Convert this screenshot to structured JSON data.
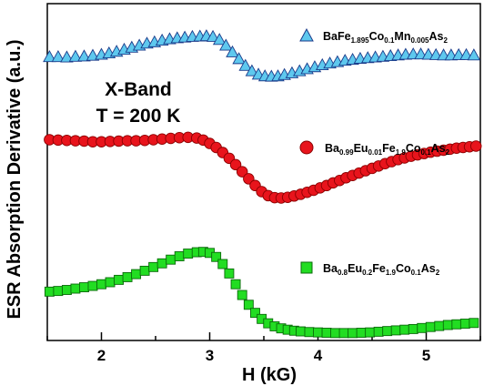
{
  "chart_data": {
    "type": "scatter",
    "xlabel": "H (kG)",
    "ylabel": "ESR Absorption Derivative (a.u.)",
    "xlim": [
      1.5,
      5.5
    ],
    "ylim": [
      0,
      1
    ],
    "x_ticks": [
      2,
      3,
      4,
      5
    ],
    "x_tick_labels": [
      "2",
      "3",
      "4",
      "5"
    ],
    "y_ticks_labeled": false,
    "grid": false,
    "legend_placement": "right, beside each series",
    "annotations": [
      "X-Band",
      "T = 200 K"
    ],
    "series": [
      {
        "legend": [
          {
            "t": "BaFe",
            "s": false
          },
          {
            "t": "1.895",
            "s": true
          },
          {
            "t": "Co",
            "s": false
          },
          {
            "t": "0.1",
            "s": true
          },
          {
            "t": "Mn",
            "s": false
          },
          {
            "t": "0.005",
            "s": true
          },
          {
            "t": "As",
            "s": false
          },
          {
            "t": "2",
            "s": true
          }
        ],
        "marker": "triangle-up",
        "color": "#5ec8ee",
        "edge_color": "#1a3a8a",
        "x": [
          1.52,
          1.6,
          1.68,
          1.76,
          1.84,
          1.92,
          2.0,
          2.07,
          2.14,
          2.21,
          2.28,
          2.35,
          2.42,
          2.49,
          2.56,
          2.63,
          2.7,
          2.77,
          2.84,
          2.91,
          2.97,
          3.03,
          3.09,
          3.15,
          3.21,
          3.27,
          3.33,
          3.39,
          3.45,
          3.51,
          3.57,
          3.63,
          3.69,
          3.76,
          3.83,
          3.9,
          3.97,
          4.04,
          4.11,
          4.18,
          4.25,
          4.32,
          4.39,
          4.46,
          4.53,
          4.6,
          4.67,
          4.74,
          4.81,
          4.88,
          4.95,
          5.02,
          5.09,
          5.16,
          5.23,
          5.3,
          5.37,
          5.44
        ],
        "y": [
          0.842,
          0.842,
          0.841,
          0.843,
          0.844,
          0.846,
          0.849,
          0.853,
          0.858,
          0.864,
          0.87,
          0.876,
          0.882,
          0.886,
          0.891,
          0.895,
          0.898,
          0.9,
          0.902,
          0.903,
          0.904,
          0.902,
          0.893,
          0.876,
          0.856,
          0.836,
          0.816,
          0.8,
          0.79,
          0.785,
          0.784,
          0.785,
          0.789,
          0.794,
          0.8,
          0.806,
          0.812,
          0.818,
          0.823,
          0.827,
          0.831,
          0.834,
          0.837,
          0.839,
          0.841,
          0.843,
          0.845,
          0.847,
          0.849,
          0.85,
          0.85,
          0.849,
          0.848,
          0.847,
          0.847,
          0.848,
          0.848,
          0.847
        ]
      },
      {
        "legend": [
          {
            "t": "Ba",
            "s": false
          },
          {
            "t": "0.99",
            "s": true
          },
          {
            "t": "Eu",
            "s": false
          },
          {
            "t": "0.01",
            "s": true
          },
          {
            "t": "Fe",
            "s": false
          },
          {
            "t": "1.9",
            "s": true
          },
          {
            "t": "Co",
            "s": false
          },
          {
            "t": "0.1",
            "s": true
          },
          {
            "t": "As",
            "s": false
          },
          {
            "t": "2",
            "s": true
          }
        ],
        "marker": "circle",
        "color": "#e8141c",
        "edge_color": "#8a0000",
        "x": [
          1.52,
          1.6,
          1.68,
          1.76,
          1.84,
          1.92,
          2.0,
          2.08,
          2.16,
          2.24,
          2.32,
          2.4,
          2.48,
          2.56,
          2.64,
          2.72,
          2.8,
          2.88,
          2.94,
          3.0,
          3.06,
          3.12,
          3.18,
          3.24,
          3.3,
          3.36,
          3.42,
          3.48,
          3.54,
          3.6,
          3.66,
          3.72,
          3.78,
          3.84,
          3.9,
          3.96,
          4.02,
          4.08,
          4.14,
          4.2,
          4.26,
          4.32,
          4.38,
          4.44,
          4.5,
          4.56,
          4.62,
          4.68,
          4.74,
          4.8,
          4.86,
          4.92,
          4.98,
          5.04,
          5.1,
          5.16,
          5.22,
          5.28,
          5.34,
          5.4,
          5.46
        ],
        "y": [
          0.596,
          0.595,
          0.594,
          0.593,
          0.592,
          0.59,
          0.59,
          0.591,
          0.592,
          0.593,
          0.593,
          0.594,
          0.596,
          0.598,
          0.6,
          0.602,
          0.603,
          0.601,
          0.595,
          0.585,
          0.573,
          0.558,
          0.541,
          0.522,
          0.501,
          0.48,
          0.46,
          0.442,
          0.43,
          0.424,
          0.423,
          0.425,
          0.429,
          0.434,
          0.44,
          0.446,
          0.453,
          0.46,
          0.468,
          0.475,
          0.483,
          0.49,
          0.497,
          0.504,
          0.511,
          0.518,
          0.525,
          0.531,
          0.537,
          0.542,
          0.547,
          0.551,
          0.555,
          0.559,
          0.562,
          0.565,
          0.568,
          0.571,
          0.573,
          0.575,
          0.577
        ]
      },
      {
        "legend": [
          {
            "t": "Ba",
            "s": false
          },
          {
            "t": "0.8",
            "s": true
          },
          {
            "t": "Eu",
            "s": false
          },
          {
            "t": "0.2",
            "s": true
          },
          {
            "t": "Fe",
            "s": false
          },
          {
            "t": "1.9",
            "s": true
          },
          {
            "t": "Co",
            "s": false
          },
          {
            "t": "0.1",
            "s": true
          },
          {
            "t": "As",
            "s": false
          },
          {
            "t": "2",
            "s": true
          }
        ],
        "marker": "square",
        "color": "#22dd22",
        "edge_color": "#0a6a0a",
        "x": [
          1.52,
          1.6,
          1.68,
          1.76,
          1.84,
          1.92,
          2.0,
          2.08,
          2.16,
          2.24,
          2.32,
          2.4,
          2.48,
          2.56,
          2.64,
          2.72,
          2.8,
          2.88,
          2.94,
          3.0,
          3.06,
          3.12,
          3.18,
          3.24,
          3.3,
          3.36,
          3.42,
          3.48,
          3.54,
          3.6,
          3.66,
          3.72,
          3.78,
          3.84,
          3.92,
          4.0,
          4.08,
          4.16,
          4.24,
          4.32,
          4.4,
          4.48,
          4.56,
          4.64,
          4.72,
          4.8,
          4.88,
          4.96,
          5.04,
          5.12,
          5.2,
          5.28,
          5.36,
          5.44
        ],
        "y": [
          0.145,
          0.147,
          0.15,
          0.154,
          0.158,
          0.162,
          0.167,
          0.173,
          0.18,
          0.188,
          0.197,
          0.207,
          0.218,
          0.229,
          0.24,
          0.25,
          0.258,
          0.262,
          0.263,
          0.26,
          0.248,
          0.227,
          0.199,
          0.167,
          0.135,
          0.106,
          0.082,
          0.064,
          0.051,
          0.042,
          0.036,
          0.032,
          0.029,
          0.027,
          0.025,
          0.024,
          0.023,
          0.022,
          0.022,
          0.022,
          0.023,
          0.024,
          0.026,
          0.028,
          0.03,
          0.032,
          0.034,
          0.037,
          0.04,
          0.043,
          0.046,
          0.048,
          0.05,
          0.052
        ]
      }
    ]
  }
}
